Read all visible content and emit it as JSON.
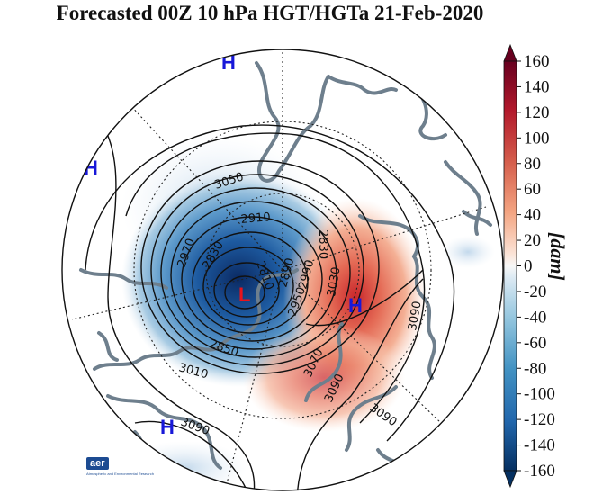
{
  "title": "Forecasted 00Z 10 hPa HGT/HGTa 21-Feb-2020",
  "colorbar": {
    "unit": "[dam]",
    "ticks": [
      "160",
      "140",
      "120",
      "100",
      "80",
      "60",
      "40",
      "20",
      "0",
      "-20",
      "-40",
      "-60",
      "-80",
      "-100",
      "-120",
      "-140",
      "-160"
    ],
    "min": -160,
    "max": 160
  },
  "markers": {
    "high_top": "H",
    "high_left": "H",
    "high_bottom": "H",
    "high_right": "H",
    "low_center": "L"
  },
  "contour_labels": [
    "3050",
    "2910",
    "2970",
    "2830",
    "2810",
    "2890",
    "2850",
    "3010",
    "2950",
    "2990",
    "2830",
    "3030",
    "3070",
    "3090",
    "3090",
    "3090",
    "3090"
  ],
  "logo": {
    "name": "aer",
    "subtitle": "Atmospheric and Environmental Research"
  },
  "colors": {
    "low_marker": "#e8141c",
    "high_marker": "#1818d8",
    "coast": "#6e7f8d"
  }
}
